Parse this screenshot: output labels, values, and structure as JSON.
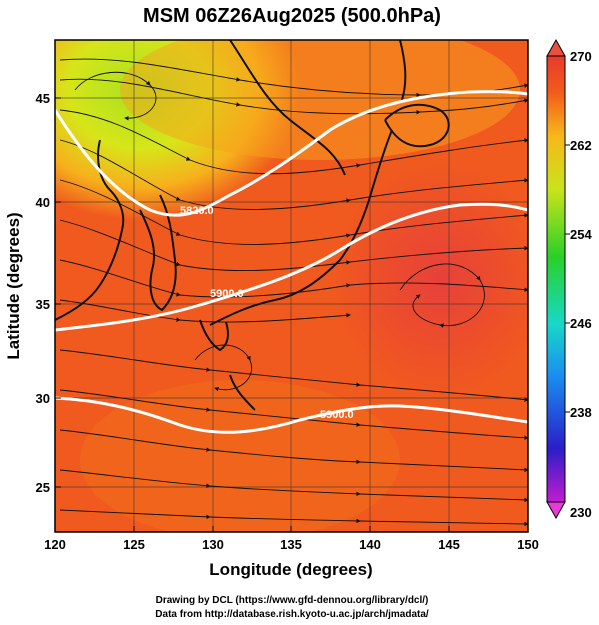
{
  "title": "MSM 06Z26Aug2025 (500.0hPa)",
  "x_axis": {
    "label": "Longitude (degrees)",
    "ticks": [
      "120",
      "125",
      "130",
      "135",
      "140",
      "145",
      "150"
    ],
    "range": [
      120,
      150
    ]
  },
  "y_axis": {
    "label": "Latitude  (degrees)",
    "ticks": [
      "25",
      "30",
      "35",
      "40",
      "45"
    ],
    "range": [
      22.4,
      47.6
    ]
  },
  "colorbar": {
    "ticks": [
      "270",
      "262",
      "254",
      "246",
      "238",
      "230"
    ],
    "range": [
      230,
      270
    ]
  },
  "contour_labels": [
    "5820.0",
    "5900.0",
    "5900.0"
  ],
  "credits": {
    "line1": "Drawing by DCL (https://www.gfd-dennou.org/library/dcl/)",
    "line2": "Data from http://database.rish.kyoto-u.ac.jp/arch/jmadata/"
  },
  "colors": {
    "warm_core": "#ea3b2c",
    "warm": "#f26a1a",
    "mid": "#f7a21c",
    "cool": "#d7e51a",
    "coolest": "#a9e21e",
    "contour": "#ffffff",
    "streamline": "#111111"
  }
}
